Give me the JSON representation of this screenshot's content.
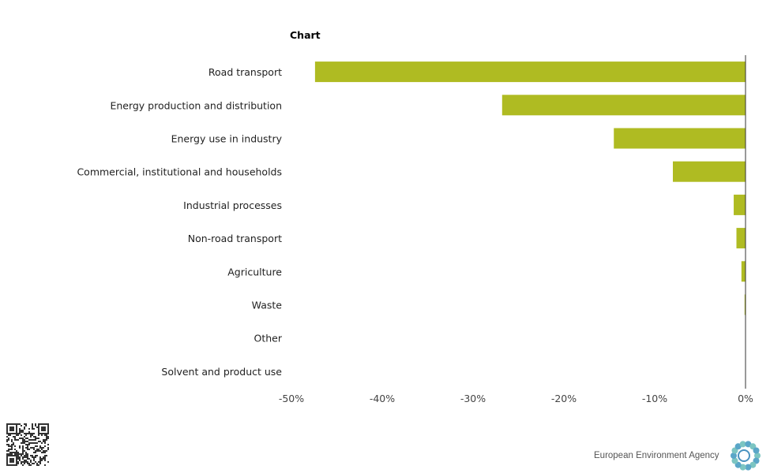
{
  "chart_data": {
    "type": "bar",
    "orientation": "horizontal",
    "title": "Chart",
    "categories": [
      "Road transport",
      "Energy production and distribution",
      "Energy use in industry",
      "Commercial, institutional and households",
      "Industrial processes",
      "Non-road transport",
      "Agriculture",
      "Waste",
      "Other",
      "Solvent and product use"
    ],
    "values": [
      -47.4,
      -26.8,
      -14.5,
      -8.0,
      -1.3,
      -1.0,
      -0.45,
      -0.1,
      0,
      0
    ],
    "xlim": [
      -50,
      0
    ],
    "xticks": [
      -50,
      -40,
      -30,
      -20,
      -10,
      0
    ],
    "xtick_labels": [
      "-50%",
      "-40%",
      "-30%",
      "-20%",
      "-10%",
      "0%"
    ],
    "xlabel": "",
    "ylabel": "",
    "grid": false,
    "bar_color": "#afbb22"
  },
  "footer": {
    "agency": "European Environment Agency"
  }
}
